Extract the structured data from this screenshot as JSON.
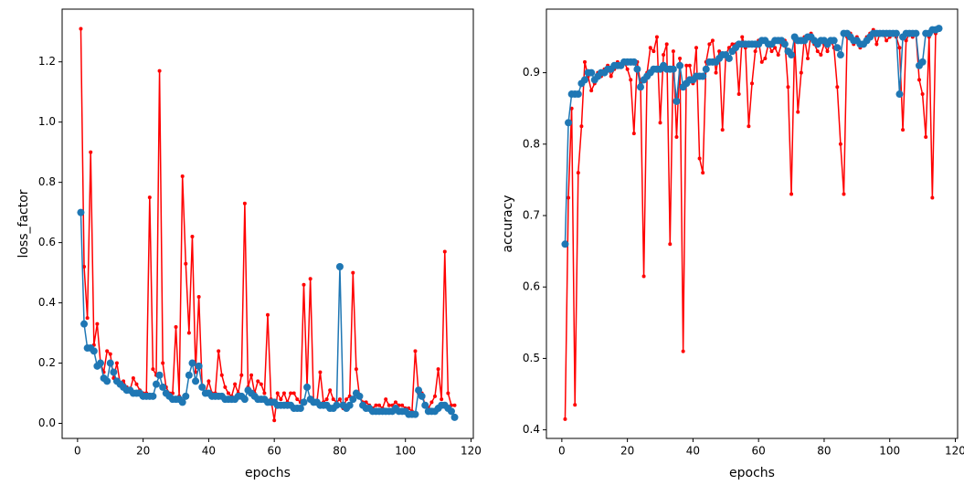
{
  "chart_data": [
    {
      "type": "line",
      "xlabel": "epochs",
      "ylabel": "loss_factor",
      "x": [
        1,
        2,
        3,
        4,
        5,
        6,
        7,
        8,
        9,
        10,
        11,
        12,
        13,
        14,
        15,
        16,
        17,
        18,
        19,
        20,
        21,
        22,
        23,
        24,
        25,
        26,
        27,
        28,
        29,
        30,
        31,
        32,
        33,
        34,
        35,
        36,
        37,
        38,
        39,
        40,
        41,
        42,
        43,
        44,
        45,
        46,
        47,
        48,
        49,
        50,
        51,
        52,
        53,
        54,
        55,
        56,
        57,
        58,
        59,
        60,
        61,
        62,
        63,
        64,
        65,
        66,
        67,
        68,
        69,
        70,
        71,
        72,
        73,
        74,
        75,
        76,
        77,
        78,
        79,
        80,
        81,
        82,
        83,
        84,
        85,
        86,
        87,
        88,
        89,
        90,
        91,
        92,
        93,
        94,
        95,
        96,
        97,
        98,
        99,
        100,
        101,
        102,
        103,
        104,
        105,
        106,
        107,
        108,
        109,
        110,
        111,
        112,
        113,
        114,
        115
      ],
      "series": [
        {
          "color": "#ff0000",
          "values": [
            1.31,
            0.52,
            0.35,
            0.9,
            0.26,
            0.33,
            0.2,
            0.17,
            0.24,
            0.23,
            0.15,
            0.2,
            0.13,
            0.14,
            0.12,
            0.11,
            0.15,
            0.13,
            0.11,
            0.1,
            0.1,
            0.75,
            0.18,
            0.16,
            1.17,
            0.2,
            0.12,
            0.1,
            0.1,
            0.32,
            0.09,
            0.82,
            0.53,
            0.3,
            0.62,
            0.17,
            0.42,
            0.12,
            0.1,
            0.14,
            0.1,
            0.1,
            0.24,
            0.16,
            0.12,
            0.1,
            0.09,
            0.13,
            0.1,
            0.16,
            0.73,
            0.12,
            0.16,
            0.1,
            0.14,
            0.13,
            0.1,
            0.36,
            0.08,
            0.01,
            0.1,
            0.08,
            0.1,
            0.07,
            0.1,
            0.1,
            0.08,
            0.07,
            0.46,
            0.12,
            0.48,
            0.07,
            0.07,
            0.17,
            0.07,
            0.08,
            0.11,
            0.08,
            0.07,
            0.08,
            0.05,
            0.08,
            0.09,
            0.5,
            0.18,
            0.09,
            0.07,
            0.07,
            0.06,
            0.05,
            0.06,
            0.06,
            0.05,
            0.08,
            0.06,
            0.06,
            0.07,
            0.06,
            0.06,
            0.05,
            0.05,
            0.04,
            0.24,
            0.1,
            0.1,
            0.06,
            0.05,
            0.07,
            0.09,
            0.18,
            0.08,
            0.57,
            0.1,
            0.06,
            0.06
          ]
        },
        {
          "color": "#1f77b4",
          "values": [
            0.7,
            0.33,
            0.25,
            0.25,
            0.24,
            0.19,
            0.2,
            0.15,
            0.14,
            0.2,
            0.17,
            0.14,
            0.13,
            0.12,
            0.11,
            0.11,
            0.1,
            0.1,
            0.1,
            0.09,
            0.09,
            0.09,
            0.09,
            0.13,
            0.16,
            0.12,
            0.1,
            0.09,
            0.08,
            0.08,
            0.08,
            0.07,
            0.09,
            0.16,
            0.2,
            0.14,
            0.19,
            0.12,
            0.1,
            0.1,
            0.09,
            0.09,
            0.09,
            0.09,
            0.08,
            0.08,
            0.08,
            0.08,
            0.09,
            0.09,
            0.08,
            0.11,
            0.1,
            0.09,
            0.08,
            0.08,
            0.08,
            0.07,
            0.07,
            0.07,
            0.06,
            0.06,
            0.06,
            0.06,
            0.06,
            0.05,
            0.05,
            0.05,
            0.07,
            0.12,
            0.08,
            0.07,
            0.07,
            0.06,
            0.06,
            0.06,
            0.05,
            0.05,
            0.06,
            0.52,
            0.06,
            0.05,
            0.06,
            0.08,
            0.1,
            0.09,
            0.06,
            0.05,
            0.05,
            0.04,
            0.04,
            0.04,
            0.04,
            0.04,
            0.04,
            0.04,
            0.05,
            0.04,
            0.04,
            0.04,
            0.03,
            0.03,
            0.03,
            0.11,
            0.09,
            0.06,
            0.04,
            0.04,
            0.04,
            0.05,
            0.06,
            0.06,
            0.05,
            0.04,
            0.02
          ]
        }
      ],
      "xlim": [
        -4.7,
        120.7
      ],
      "xticks": [
        0,
        20,
        40,
        60,
        80,
        100,
        120
      ],
      "ylim": [
        -0.05,
        1.375
      ],
      "yticks": [
        {
          "value": 0,
          "label": "0.0"
        },
        0.2,
        0.4,
        0.6,
        0.8,
        {
          "value": 1,
          "label": "1.0"
        },
        1.2
      ]
    },
    {
      "type": "line",
      "xlabel": "epochs",
      "ylabel": "accuracy",
      "x": [
        1,
        2,
        3,
        4,
        5,
        6,
        7,
        8,
        9,
        10,
        11,
        12,
        13,
        14,
        15,
        16,
        17,
        18,
        19,
        20,
        21,
        22,
        23,
        24,
        25,
        26,
        27,
        28,
        29,
        30,
        31,
        32,
        33,
        34,
        35,
        36,
        37,
        38,
        39,
        40,
        41,
        42,
        43,
        44,
        45,
        46,
        47,
        48,
        49,
        50,
        51,
        52,
        53,
        54,
        55,
        56,
        57,
        58,
        59,
        60,
        61,
        62,
        63,
        64,
        65,
        66,
        67,
        68,
        69,
        70,
        71,
        72,
        73,
        74,
        75,
        76,
        77,
        78,
        79,
        80,
        81,
        82,
        83,
        84,
        85,
        86,
        87,
        88,
        89,
        90,
        91,
        92,
        93,
        94,
        95,
        96,
        97,
        98,
        99,
        100,
        101,
        102,
        103,
        104,
        105,
        106,
        107,
        108,
        109,
        110,
        111,
        112,
        113,
        114,
        115
      ],
      "series": [
        {
          "color": "#ff0000",
          "values": [
            0.415,
            0.725,
            0.85,
            0.435,
            0.76,
            0.825,
            0.915,
            0.895,
            0.875,
            0.885,
            0.9,
            0.895,
            0.905,
            0.91,
            0.895,
            0.905,
            0.915,
            0.91,
            0.915,
            0.905,
            0.89,
            0.815,
            0.915,
            0.885,
            0.615,
            0.9,
            0.935,
            0.93,
            0.95,
            0.83,
            0.925,
            0.94,
            0.66,
            0.93,
            0.81,
            0.92,
            0.51,
            0.91,
            0.91,
            0.885,
            0.935,
            0.78,
            0.76,
            0.915,
            0.94,
            0.945,
            0.9,
            0.93,
            0.82,
            0.925,
            0.935,
            0.94,
            0.94,
            0.87,
            0.95,
            0.935,
            0.825,
            0.885,
            0.93,
            0.945,
            0.915,
            0.92,
            0.94,
            0.93,
            0.935,
            0.925,
            0.94,
            0.945,
            0.88,
            0.73,
            0.945,
            0.845,
            0.9,
            0.95,
            0.92,
            0.955,
            0.94,
            0.93,
            0.925,
            0.94,
            0.93,
            0.945,
            0.935,
            0.88,
            0.8,
            0.73,
            0.95,
            0.955,
            0.94,
            0.95,
            0.935,
            0.94,
            0.95,
            0.955,
            0.96,
            0.94,
            0.955,
            0.955,
            0.945,
            0.95,
            0.955,
            0.95,
            0.935,
            0.82,
            0.945,
            0.955,
            0.95,
            0.955,
            0.89,
            0.87,
            0.81,
            0.95,
            0.725,
            0.955,
            0.96
          ]
        },
        {
          "color": "#1f77b4",
          "values": [
            0.66,
            0.83,
            0.87,
            0.87,
            0.87,
            0.885,
            0.89,
            0.9,
            0.9,
            0.89,
            0.895,
            0.9,
            0.9,
            0.905,
            0.905,
            0.91,
            0.91,
            0.91,
            0.915,
            0.915,
            0.915,
            0.915,
            0.905,
            0.88,
            0.89,
            0.895,
            0.9,
            0.905,
            0.905,
            0.905,
            0.91,
            0.905,
            0.905,
            0.905,
            0.86,
            0.91,
            0.88,
            0.885,
            0.89,
            0.89,
            0.895,
            0.895,
            0.895,
            0.905,
            0.915,
            0.915,
            0.915,
            0.92,
            0.925,
            0.925,
            0.92,
            0.93,
            0.935,
            0.94,
            0.94,
            0.94,
            0.94,
            0.94,
            0.94,
            0.94,
            0.945,
            0.945,
            0.94,
            0.94,
            0.945,
            0.945,
            0.945,
            0.94,
            0.93,
            0.925,
            0.95,
            0.945,
            0.945,
            0.945,
            0.95,
            0.95,
            0.945,
            0.94,
            0.945,
            0.945,
            0.94,
            0.945,
            0.945,
            0.935,
            0.925,
            0.955,
            0.955,
            0.95,
            0.945,
            0.945,
            0.94,
            0.94,
            0.945,
            0.95,
            0.955,
            0.955,
            0.955,
            0.955,
            0.955,
            0.955,
            0.955,
            0.955,
            0.87,
            0.95,
            0.955,
            0.955,
            0.955,
            0.955,
            0.91,
            0.915,
            0.955,
            0.955,
            0.96,
            0.96,
            0.962
          ]
        }
      ],
      "xlim": [
        -4.7,
        120.7
      ],
      "xticks": [
        0,
        20,
        40,
        60,
        80,
        100,
        120
      ],
      "ylim": [
        0.388,
        0.989
      ],
      "yticks": [
        0.4,
        0.5,
        0.6,
        0.7,
        0.8,
        0.9
      ]
    }
  ]
}
